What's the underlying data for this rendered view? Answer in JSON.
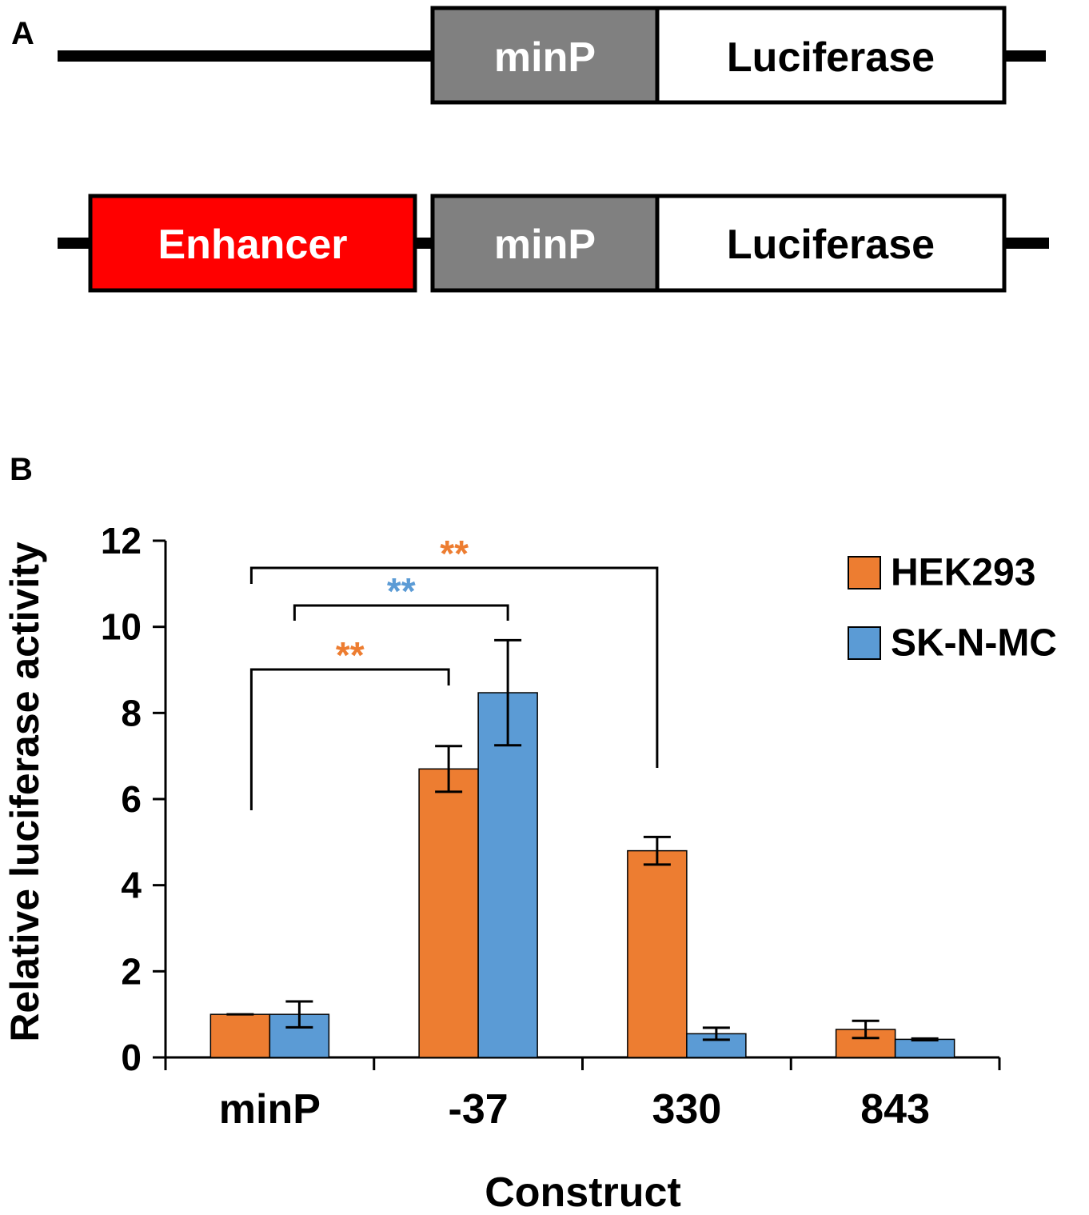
{
  "panel_a": {
    "letter": "A",
    "constructs": [
      {
        "boxes": [
          {
            "label": "minP",
            "fill": "#808080",
            "text_color": "#ffffff"
          },
          {
            "label": "Luciferase",
            "fill": "#ffffff",
            "text_color": "#000000"
          }
        ]
      },
      {
        "boxes": [
          {
            "label": "Enhancer",
            "fill": "#ff0000",
            "text_color": "#ffffff"
          },
          {
            "label": "minP",
            "fill": "#808080",
            "text_color": "#ffffff"
          },
          {
            "label": "Luciferase",
            "fill": "#ffffff",
            "text_color": "#000000"
          }
        ]
      }
    ]
  },
  "panel_b": {
    "letter": "B"
  },
  "chart_data": {
    "type": "bar",
    "title": "",
    "xlabel": "Construct",
    "ylabel": "Relative luciferase activity",
    "ylim": [
      0,
      12
    ],
    "yticks": [
      "0",
      "2",
      "4",
      "6",
      "8",
      "10",
      "12"
    ],
    "categories": [
      "minP",
      "-37",
      "330",
      "843"
    ],
    "series": [
      {
        "name": "HEK293",
        "color": "#ed7d31",
        "values": [
          1.0,
          6.7,
          4.8,
          0.65
        ],
        "errors": [
          0.0,
          0.53,
          0.32,
          0.2
        ]
      },
      {
        "name": "SK-N-MC",
        "color": "#5b9bd5",
        "values": [
          1.0,
          8.47,
          0.55,
          0.42
        ],
        "errors": [
          0.3,
          1.22,
          0.14,
          0.02
        ]
      }
    ],
    "legend_position": "top-right",
    "grid": false,
    "significance": [
      {
        "from": "minP",
        "to": "-37",
        "series": "HEK293",
        "label": "**",
        "color": "#ed7d31"
      },
      {
        "from": "minP",
        "to": "-37",
        "series": "SK-N-MC",
        "label": "**",
        "color": "#5b9bd5"
      },
      {
        "from": "minP",
        "to": "330",
        "series": "HEK293",
        "label": "**",
        "color": "#ed7d31"
      }
    ]
  }
}
